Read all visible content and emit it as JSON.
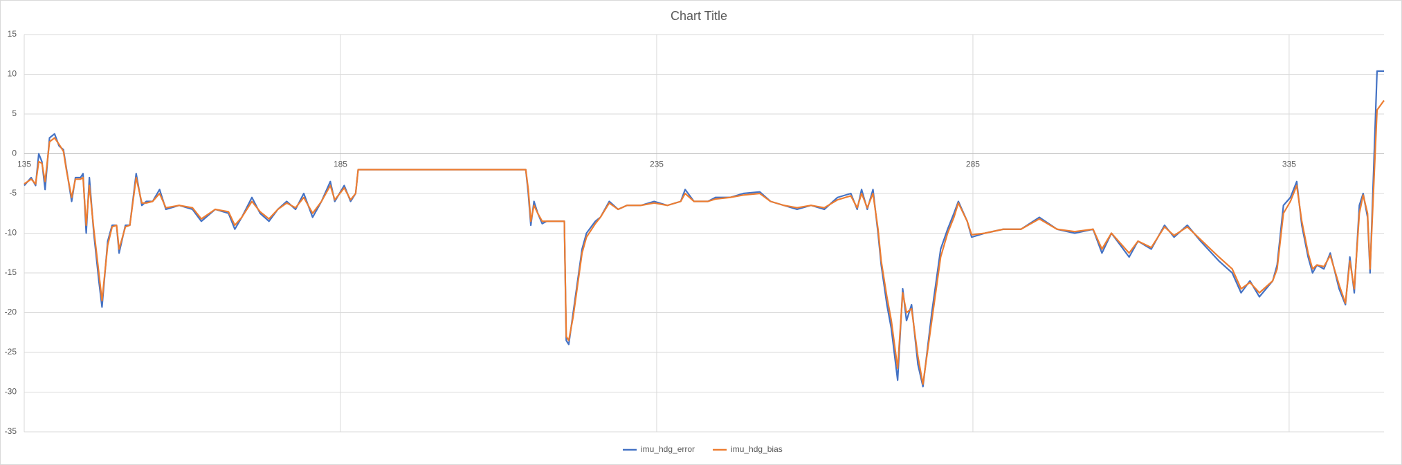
{
  "chart_data": {
    "type": "line",
    "title": "Chart Title",
    "x": [
      135,
      136.1,
      136.8,
      137.3,
      137.8,
      138.3,
      139,
      139.8,
      140.5,
      141.2,
      141.7,
      142.5,
      143.1,
      143.9,
      144.3,
      144.8,
      145.3,
      146,
      146.8,
      147.3,
      148.2,
      148.9,
      149.6,
      150,
      151,
      151.7,
      152.7,
      153.6,
      154.3,
      155.3,
      156.4,
      157.4,
      159.5,
      161.6,
      163,
      165.2,
      167.3,
      168.3,
      169.4,
      171,
      172.3,
      173.7,
      175.1,
      176.5,
      177.9,
      179.2,
      180.6,
      182,
      183.4,
      184.1,
      185.6,
      186.6,
      187.4,
      187.8,
      214.3,
      214.7,
      215.1,
      215.6,
      216.2,
      216.9,
      217.6,
      220.4,
      220.7,
      221.1,
      221.8,
      222.5,
      223.2,
      223.9,
      225.3,
      226.1,
      227.5,
      228.9,
      230.3,
      232.5,
      234.6,
      236.7,
      238.8,
      239.5,
      240.9,
      243.1,
      244.3,
      246.6,
      248.7,
      251.3,
      253,
      255.1,
      257.2,
      259.4,
      261.5,
      263.6,
      265.7,
      266.7,
      267.4,
      268.3,
      269.2,
      270,
      270.5,
      271.4,
      272.1,
      273.1,
      273.9,
      274.5,
      275.3,
      276.3,
      277.1,
      278.5,
      279.9,
      281,
      282,
      282.7,
      284.1,
      284.8,
      286.9,
      289.8,
      292.6,
      295.5,
      298.3,
      301.1,
      304,
      305.4,
      306.9,
      309.7,
      311.1,
      313.2,
      315.3,
      316.8,
      318.9,
      321,
      323.9,
      326,
      327.4,
      328.8,
      330.3,
      332.4,
      333.1,
      334.1,
      335.2,
      336.2,
      337,
      338,
      338.7,
      339.4,
      340.5,
      341.5,
      342.9,
      343.9,
      344.6,
      345.3,
      346.1,
      346.7,
      347.4,
      347.8,
      348.9,
      350
    ],
    "series": [
      {
        "name": "imu_hdg_error",
        "color": "#4472c4",
        "values": [
          -4,
          -3,
          -4,
          0,
          -1,
          -4.5,
          2,
          2.5,
          1,
          0.5,
          -2,
          -6,
          -3,
          -3,
          -2.5,
          -10,
          -3,
          -10,
          -16,
          -19.3,
          -11,
          -9,
          -9,
          -12.5,
          -9,
          -9,
          -2.5,
          -6.5,
          -6,
          -6,
          -4.5,
          -7,
          -6.5,
          -7,
          -8.5,
          -7,
          -7.5,
          -9.5,
          -8,
          -5.5,
          -7.5,
          -8.5,
          -7,
          -6,
          -7,
          -5,
          -8,
          -6,
          -3.5,
          -6,
          -4,
          -6,
          -5,
          -2,
          -2,
          -5,
          -9,
          -6,
          -7.5,
          -8.8,
          -8.5,
          -8.5,
          -23.5,
          -24,
          -20,
          -16,
          -12,
          -10,
          -8.5,
          -8,
          -6,
          -7,
          -6.5,
          -6.5,
          -6,
          -6.5,
          -6,
          -4.5,
          -6,
          -6,
          -5.5,
          -5.5,
          -5,
          -4.8,
          -6,
          -6.5,
          -7,
          -6.5,
          -7,
          -5.5,
          -5,
          -7,
          -4.5,
          -7,
          -4.5,
          -10,
          -14,
          -19,
          -22,
          -28.5,
          -17,
          -21,
          -19,
          -26.5,
          -29.3,
          -20,
          -12,
          -9.5,
          -7.5,
          -6,
          -8.5,
          -10.5,
          -10,
          -9.5,
          -9.5,
          -8,
          -9.5,
          -10,
          -9.5,
          -12.5,
          -10,
          -13,
          -11,
          -12,
          -9,
          -10.5,
          -9,
          -11,
          -13.5,
          -15,
          -17.5,
          -16,
          -18,
          -16,
          -14,
          -6.5,
          -5.5,
          -3.5,
          -9,
          -13,
          -15,
          -14,
          -14.5,
          -12.5,
          -17,
          -19,
          -13,
          -17.5,
          -6.5,
          -5,
          -8,
          -15,
          10.4,
          10.4
        ]
      },
      {
        "name": "imu_hdg_bias",
        "color": "#ed7d31",
        "values": [
          -3.8,
          -3.2,
          -3.8,
          -1,
          -1.2,
          -3.5,
          1.5,
          2,
          1.2,
          0.3,
          -2.2,
          -5.5,
          -3.2,
          -3.2,
          -3,
          -9,
          -4,
          -9.5,
          -15,
          -18.5,
          -11.5,
          -9.2,
          -9,
          -12,
          -9.2,
          -9,
          -3,
          -6.2,
          -6.2,
          -6,
          -5,
          -6.8,
          -6.5,
          -6.8,
          -8.2,
          -7,
          -7.3,
          -9,
          -8,
          -6,
          -7.3,
          -8.2,
          -7,
          -6.2,
          -6.8,
          -5.5,
          -7.5,
          -6,
          -4,
          -5.8,
          -4.3,
          -5.8,
          -5,
          -2,
          -2,
          -4.5,
          -8.5,
          -6.5,
          -7.5,
          -8.5,
          -8.5,
          -8.5,
          -23,
          -23.5,
          -20.5,
          -16.5,
          -12.5,
          -10.5,
          -8.8,
          -8,
          -6.2,
          -7,
          -6.5,
          -6.5,
          -6.2,
          -6.5,
          -6,
          -5,
          -6,
          -6,
          -5.7,
          -5.5,
          -5.2,
          -5,
          -6,
          -6.5,
          -6.8,
          -6.5,
          -6.8,
          -5.8,
          -5.3,
          -6.8,
          -5,
          -6.8,
          -5,
          -9.5,
          -13.5,
          -18,
          -21,
          -27,
          -17.5,
          -20,
          -19.5,
          -25.5,
          -29,
          -21,
          -13,
          -10,
          -8,
          -6.2,
          -8.5,
          -10.2,
          -10,
          -9.5,
          -9.5,
          -8.2,
          -9.5,
          -9.8,
          -9.5,
          -12,
          -10,
          -12.5,
          -11,
          -11.8,
          -9.2,
          -10.3,
          -9.2,
          -10.8,
          -13,
          -14.5,
          -17,
          -16.2,
          -17.5,
          -16,
          -14.5,
          -7.5,
          -6,
          -4,
          -8.5,
          -12.5,
          -14.5,
          -14,
          -14.2,
          -12.8,
          -16.5,
          -18.8,
          -13.5,
          -17,
          -7.5,
          -5.2,
          -7.5,
          -14.5,
          5.5,
          6.7
        ]
      }
    ],
    "xlim": [
      135,
      350
    ],
    "xticks": [
      135,
      185,
      235,
      285,
      335
    ],
    "ylim": [
      -35,
      15
    ],
    "yticks": [
      -35,
      -30,
      -25,
      -20,
      -15,
      -10,
      -5,
      0,
      5,
      10,
      15
    ],
    "grid": true,
    "legend": "bottom"
  }
}
